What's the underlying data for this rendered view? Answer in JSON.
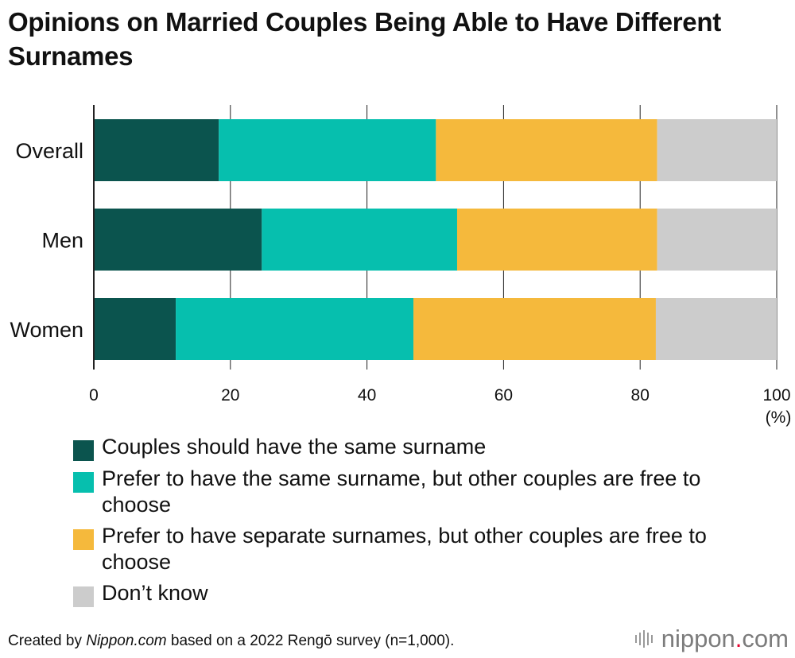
{
  "title": "Opinions on Married Couples Being Able to Have Different Surnames",
  "footer": {
    "prefix": "Created by ",
    "source_name": "Nippon.com",
    "suffix": " based on a 2022 Rengō survey (n=1,000)."
  },
  "brand": {
    "name": "nippon",
    "dot": ".",
    "tld": "com"
  },
  "chart_data": {
    "type": "bar",
    "orientation": "horizontal",
    "stacked": true,
    "title": "Opinions on Married Couples Being Able to Have Different Surnames",
    "categories": [
      "Overall",
      "Men",
      "Women"
    ],
    "series": [
      {
        "name": "Couples should have the same surname",
        "color": "#0b544e",
        "values": [
          18.3,
          24.6,
          12.0
        ]
      },
      {
        "name": "Prefer to have the same surname, but other couples are free to choose",
        "color": "#06bfae",
        "values": [
          31.8,
          28.6,
          34.8
        ]
      },
      {
        "name": "Prefer to have separate surnames, but other couples are free to choose",
        "color": "#f5b93c",
        "values": [
          32.4,
          29.3,
          35.5
        ]
      },
      {
        "name": "Don’t know",
        "color": "#cccccc",
        "values": [
          17.5,
          17.5,
          17.7
        ]
      }
    ],
    "xlim": [
      0,
      100
    ],
    "xticks": [
      0,
      20,
      40,
      60,
      80,
      100
    ],
    "xunit": "(%)",
    "grid": true,
    "legend_position": "bottom"
  }
}
